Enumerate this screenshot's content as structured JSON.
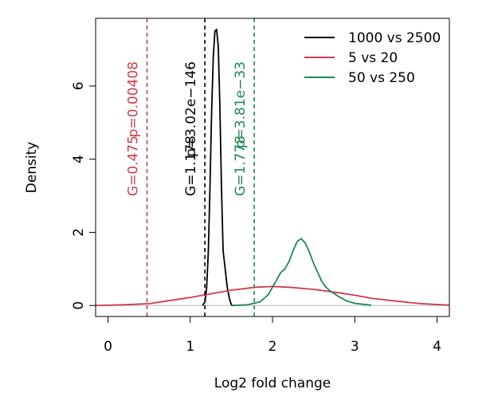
{
  "chart_data": {
    "type": "line",
    "xlabel": "Log2 fold change",
    "ylabel": "Density",
    "xlim": [
      -0.15,
      4.15
    ],
    "ylim": [
      -0.3,
      7.85
    ],
    "xticks": [
      0,
      1,
      2,
      3,
      4
    ],
    "yticks": [
      0,
      2,
      4,
      6
    ],
    "legend_position": "top-right",
    "baseline": 0,
    "series": [
      {
        "name": "1000 vs 2500",
        "color": "#000000",
        "points": [
          [
            1.15,
            0
          ],
          [
            1.18,
            0.1
          ],
          [
            1.2,
            0.5
          ],
          [
            1.22,
            1.5
          ],
          [
            1.24,
            3.2
          ],
          [
            1.26,
            5.3
          ],
          [
            1.28,
            6.8
          ],
          [
            1.3,
            7.5
          ],
          [
            1.32,
            7.55
          ],
          [
            1.34,
            7.1
          ],
          [
            1.36,
            5.5
          ],
          [
            1.38,
            3.2
          ],
          [
            1.4,
            1.5
          ],
          [
            1.42,
            1.1
          ],
          [
            1.45,
            0.5
          ],
          [
            1.48,
            0.15
          ],
          [
            1.5,
            0.02
          ],
          [
            1.52,
            0
          ]
        ]
      },
      {
        "name": "5 vs 20",
        "color": "#d03a4b",
        "points": [
          [
            -0.15,
            0
          ],
          [
            0.2,
            0.02
          ],
          [
            0.5,
            0.05
          ],
          [
            0.8,
            0.15
          ],
          [
            1.0,
            0.22
          ],
          [
            1.2,
            0.3
          ],
          [
            1.5,
            0.42
          ],
          [
            1.8,
            0.5
          ],
          [
            2.0,
            0.52
          ],
          [
            2.2,
            0.5
          ],
          [
            2.5,
            0.44
          ],
          [
            2.8,
            0.35
          ],
          [
            3.0,
            0.28
          ],
          [
            3.2,
            0.2
          ],
          [
            3.5,
            0.12
          ],
          [
            3.8,
            0.05
          ],
          [
            4.15,
            0.01
          ]
        ]
      },
      {
        "name": "50 vs 250",
        "color": "#1b8a4e",
        "points": [
          [
            1.5,
            0
          ],
          [
            1.7,
            0.02
          ],
          [
            1.85,
            0.1
          ],
          [
            1.95,
            0.3
          ],
          [
            2.05,
            0.7
          ],
          [
            2.1,
            0.9
          ],
          [
            2.15,
            1.0
          ],
          [
            2.2,
            1.2
          ],
          [
            2.25,
            1.5
          ],
          [
            2.3,
            1.75
          ],
          [
            2.35,
            1.83
          ],
          [
            2.4,
            1.7
          ],
          [
            2.45,
            1.45
          ],
          [
            2.5,
            1.15
          ],
          [
            2.55,
            0.9
          ],
          [
            2.6,
            0.65
          ],
          [
            2.65,
            0.5
          ],
          [
            2.7,
            0.4
          ],
          [
            2.8,
            0.25
          ],
          [
            2.9,
            0.13
          ],
          [
            3.0,
            0.06
          ],
          [
            3.2,
            0.01
          ]
        ]
      }
    ],
    "vlines": [
      {
        "x": 0.475,
        "color": "#d03a4b",
        "g_label": "G=0.475",
        "p_label": "p=0.00408"
      },
      {
        "x": 1.178,
        "color": "#000000",
        "g_label": "G=1.178",
        "p_label": "p=3.02e−146"
      },
      {
        "x": 1.778,
        "color": "#1b8a4e",
        "g_label": "G=1.778",
        "p_label": "p=3.81e−33"
      }
    ]
  }
}
